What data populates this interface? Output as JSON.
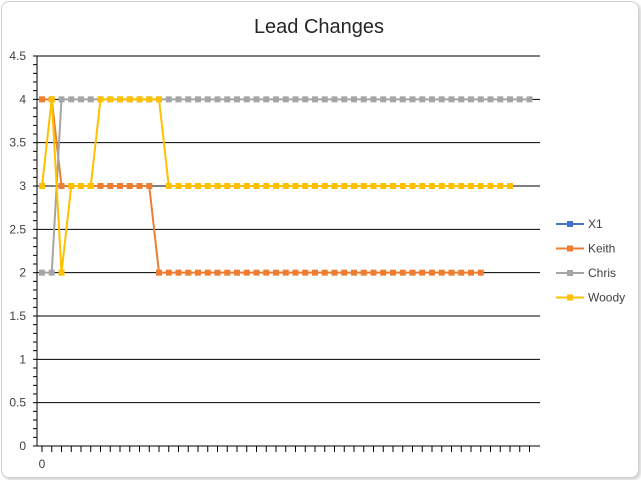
{
  "chart_data": {
    "type": "line",
    "title": "Lead Changes",
    "xlabel": "",
    "ylabel": "",
    "ylim": [
      0,
      4.5
    ],
    "yticks": [
      0,
      0.5,
      1,
      1.5,
      2,
      2.5,
      3,
      3.5,
      4,
      4.5
    ],
    "yticks_labels": [
      "0",
      "0.5",
      "1",
      "1.5",
      "2",
      "2.5",
      "3",
      "3.5",
      "4",
      "4.5"
    ],
    "xlim": [
      0,
      50
    ],
    "xtick_labels": [
      "0"
    ],
    "grid": "horizontal",
    "legend_position": "right",
    "series": [
      {
        "name": "X1",
        "color": "#4472C4",
        "values": []
      },
      {
        "name": "Keith",
        "color": "#ED7D31",
        "values": [
          4,
          4,
          3,
          3,
          3,
          3,
          3,
          3,
          3,
          3,
          3,
          3,
          2,
          2,
          2,
          2,
          2,
          2,
          2,
          2,
          2,
          2,
          2,
          2,
          2,
          2,
          2,
          2,
          2,
          2,
          2,
          2,
          2,
          2,
          2,
          2,
          2,
          2,
          2,
          2,
          2,
          2,
          2,
          2,
          2,
          2
        ]
      },
      {
        "name": "Chris",
        "color": "#A5A5A5",
        "values": [
          2,
          2,
          4,
          4,
          4,
          4,
          4,
          4,
          4,
          4,
          4,
          4,
          4,
          4,
          4,
          4,
          4,
          4,
          4,
          4,
          4,
          4,
          4,
          4,
          4,
          4,
          4,
          4,
          4,
          4,
          4,
          4,
          4,
          4,
          4,
          4,
          4,
          4,
          4,
          4,
          4,
          4,
          4,
          4,
          4,
          4,
          4,
          4,
          4,
          4,
          4
        ]
      },
      {
        "name": "Woody",
        "color": "#FFC000",
        "values": [
          3,
          4,
          2,
          3,
          3,
          3,
          4,
          4,
          4,
          4,
          4,
          4,
          4,
          3,
          3,
          3,
          3,
          3,
          3,
          3,
          3,
          3,
          3,
          3,
          3,
          3,
          3,
          3,
          3,
          3,
          3,
          3,
          3,
          3,
          3,
          3,
          3,
          3,
          3,
          3,
          3,
          3,
          3,
          3,
          3,
          3,
          3,
          3,
          3
        ]
      }
    ]
  }
}
